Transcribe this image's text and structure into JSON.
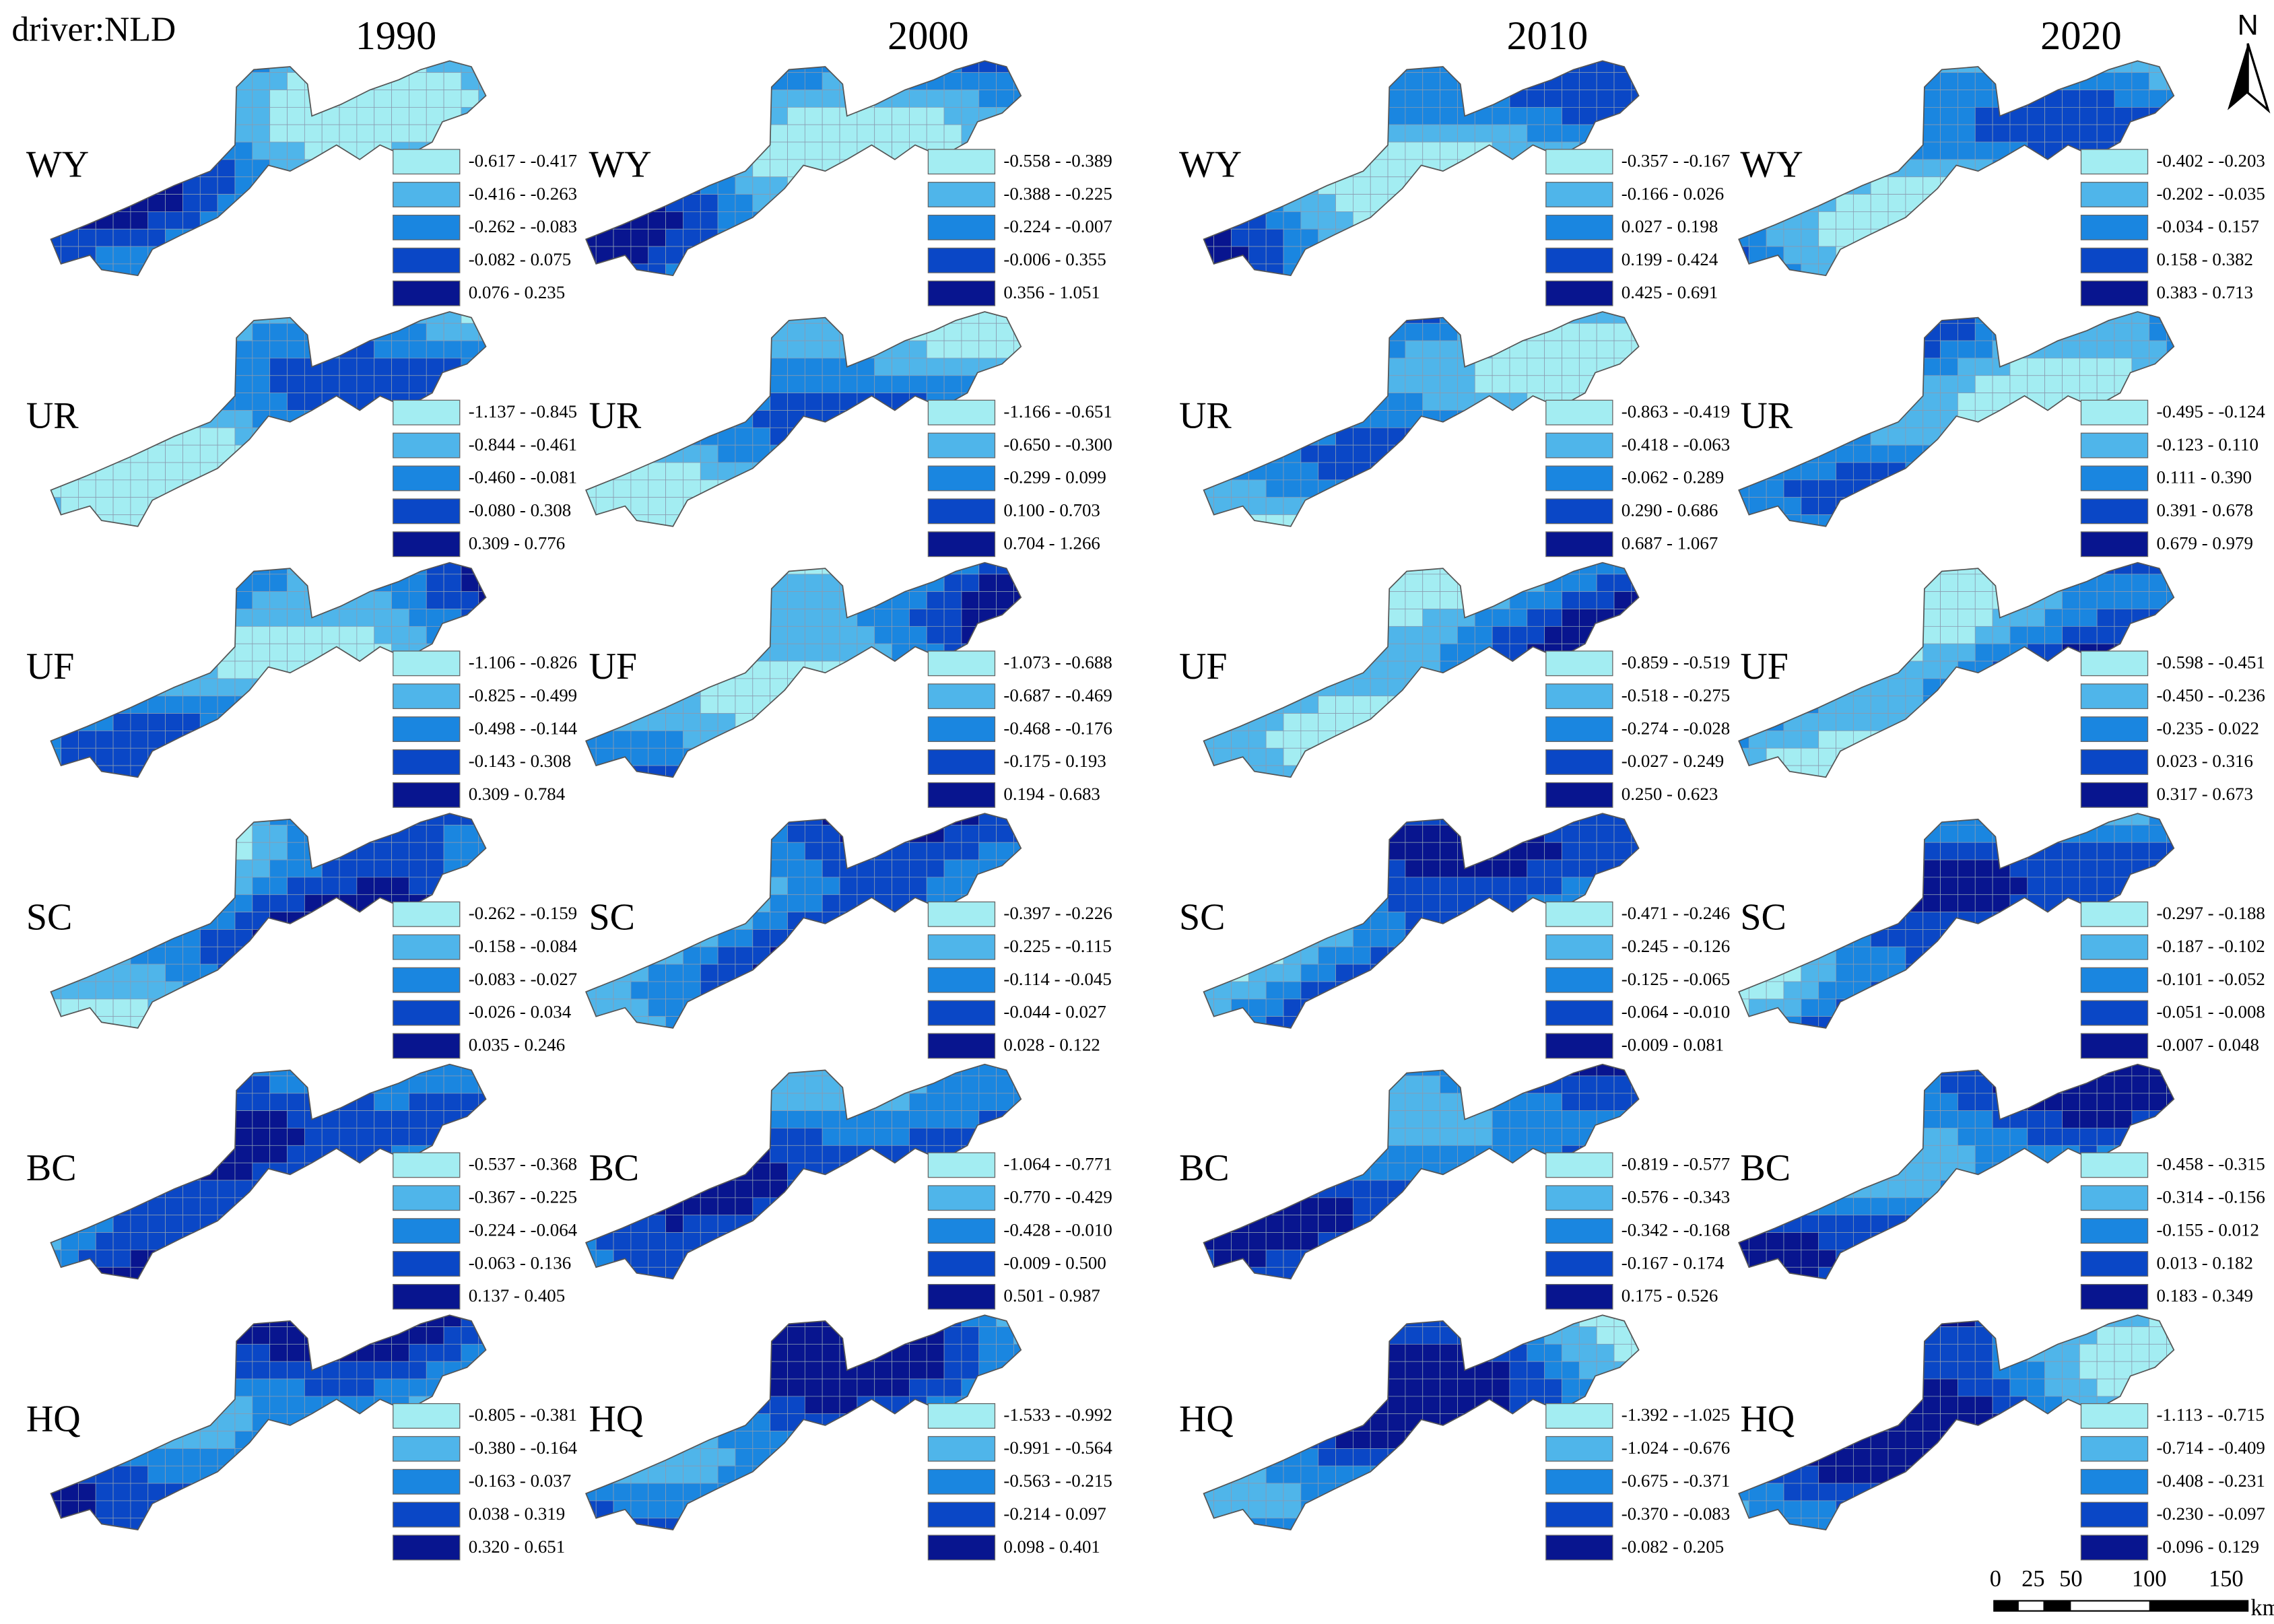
{
  "title": "driver:NLD",
  "years": [
    "1990",
    "2000",
    "2010",
    "2020"
  ],
  "drivers": [
    "WY",
    "UR",
    "UF",
    "SC",
    "BC",
    "HQ"
  ],
  "legend_colors": [
    "#a3edf2",
    "#4fb5ea",
    "#1a86e0",
    "#0a47c6",
    "#08158f"
  ],
  "legends": [
    [
      [
        "-0.617 - -0.417",
        "-0.416 - -0.263",
        "-0.262 - -0.083",
        "-0.082 - 0.075",
        "0.076 - 0.235"
      ],
      [
        "-1.137 - -0.845",
        "-0.844 - -0.461",
        "-0.460 - -0.081",
        "-0.080 - 0.308",
        "0.309 - 0.776"
      ],
      [
        "-1.106 - -0.826",
        "-0.825 - -0.499",
        "-0.498 - -0.144",
        "-0.143 - 0.308",
        "0.309 - 0.784"
      ],
      [
        "-0.262 - -0.159",
        "-0.158 - -0.084",
        "-0.083 - -0.027",
        "-0.026 - 0.034",
        "0.035 - 0.246"
      ],
      [
        "-0.537 - -0.368",
        "-0.367 - -0.225",
        "-0.224 - -0.064",
        "-0.063 - 0.136",
        "0.137 - 0.405"
      ],
      [
        "-0.805 - -0.381",
        "-0.380 - -0.164",
        "-0.163 - 0.037",
        "0.038 - 0.319",
        "0.320 - 0.651"
      ]
    ],
    [
      [
        "-0.558 - -0.389",
        "-0.388 - -0.225",
        "-0.224 - -0.007",
        "-0.006 - 0.355",
        "0.356 - 1.051"
      ],
      [
        "-1.166 - -0.651",
        "-0.650 - -0.300",
        "-0.299 - 0.099",
        "0.100 - 0.703",
        "0.704 - 1.266"
      ],
      [
        "-1.073 - -0.688",
        "-0.687 - -0.469",
        "-0.468 - -0.176",
        "-0.175 - 0.193",
        "0.194 - 0.683"
      ],
      [
        "-0.397 - -0.226",
        "-0.225 - -0.115",
        "-0.114 - -0.045",
        "-0.044 - 0.027",
        "0.028 - 0.122"
      ],
      [
        "-1.064 - -0.771",
        "-0.770 - -0.429",
        "-0.428 - -0.010",
        "-0.009 - 0.500",
        "0.501 - 0.987"
      ],
      [
        "-1.533 - -0.992",
        "-0.991 - -0.564",
        "-0.563 - -0.215",
        "-0.214 - 0.097",
        "0.098 - 0.401"
      ]
    ],
    [
      [
        "-0.357 - -0.167",
        "-0.166 - 0.026",
        "0.027 - 0.198",
        "0.199 - 0.424",
        "0.425 - 0.691"
      ],
      [
        "-0.863 - -0.419",
        "-0.418 - -0.063",
        "-0.062 - 0.289",
        "0.290 - 0.686",
        "0.687 - 1.067"
      ],
      [
        "-0.859 - -0.519",
        "-0.518 - -0.275",
        "-0.274 - -0.028",
        "-0.027 - 0.249",
        "0.250 - 0.623"
      ],
      [
        "-0.471 - -0.246",
        "-0.245 - -0.126",
        "-0.125 - -0.065",
        "-0.064 - -0.010",
        "-0.009 - 0.081"
      ],
      [
        "-0.819 - -0.577",
        "-0.576 - -0.343",
        "-0.342 - -0.168",
        "-0.167 - 0.174",
        "0.175 - 0.526"
      ],
      [
        "-1.392 - -1.025",
        "-1.024 - -0.676",
        "-0.675 - -0.371",
        "-0.370 - -0.083",
        "-0.082 - 0.205"
      ]
    ],
    [
      [
        "-0.402 - -0.203",
        "-0.202 - -0.035",
        "-0.034 - 0.157",
        "0.158 - 0.382",
        "0.383 - 0.713"
      ],
      [
        "-0.495 - -0.124",
        "-0.123 - 0.110",
        "0.111 - 0.390",
        "0.391 - 0.678",
        "0.679 - 0.979"
      ],
      [
        "-0.598 - -0.451",
        "-0.450 - -0.236",
        "-0.235 - 0.022",
        "0.023 - 0.316",
        "0.317 - 0.673"
      ],
      [
        "-0.297 - -0.188",
        "-0.187 - -0.102",
        "-0.101 - -0.052",
        "-0.051 - -0.008",
        "-0.007 - 0.048"
      ],
      [
        "-0.458 - -0.315",
        "-0.314 - -0.156",
        "-0.155 - 0.012",
        "0.013 - 0.182",
        "0.183 - 0.349"
      ],
      [
        "-1.113 - -0.715",
        "-0.714 - -0.409",
        "-0.408 - -0.231",
        "-0.230 - -0.097",
        "-0.096 - 0.129"
      ]
    ]
  ],
  "north": "N",
  "scale_bar": {
    "labels": [
      "0",
      "25",
      "50",
      "100",
      "150"
    ],
    "unit": "km"
  }
}
